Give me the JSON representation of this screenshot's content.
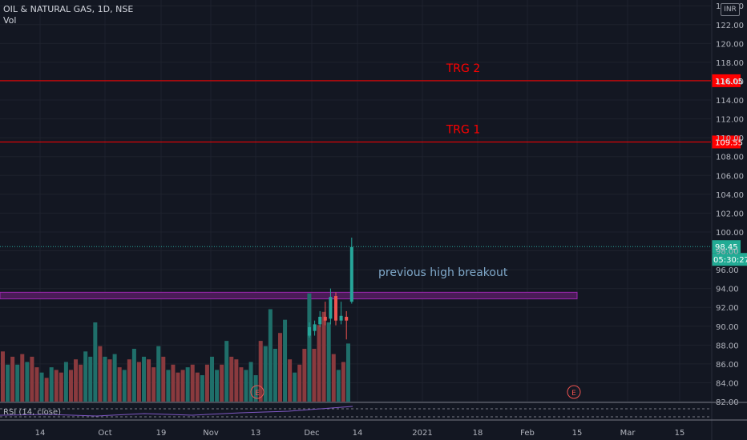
{
  "header": {
    "title": "OIL & NATURAL GAS, 1D, NSE",
    "vol_label": "Vol",
    "currency": "INR"
  },
  "rsi_label": "RSI (14, close)",
  "annotations": {
    "trg2": "TRG 2",
    "trg1": "TRG 1",
    "breakout": "previous high breakout",
    "earnings_marker": "E"
  },
  "colors": {
    "background": "#131722",
    "grid": "#1e222d",
    "up": "#26a69a",
    "down": "#ef5350",
    "vol_up": "#1f6f6a",
    "vol_down": "#8a3a3e",
    "target_line": "#ff0000",
    "zone_border": "#9c27b0",
    "zone_fill": "#4a1b57",
    "text": "#d1d4dc",
    "annotation_blue": "#7fa8c9"
  },
  "chart_data": {
    "type": "candlestick",
    "title": "OIL & NATURAL GAS, 1D, NSE",
    "ylim": [
      81,
      125
    ],
    "y_ticks": [
      "82.00",
      "84.00",
      "86.00",
      "88.00",
      "90.00",
      "92.00",
      "94.00",
      "96.00",
      "98.00",
      "100.00",
      "102.00",
      "104.00",
      "106.00",
      "108.00",
      "110.00",
      "112.00",
      "114.00",
      "116.00",
      "118.00",
      "120.00",
      "122.00",
      "124.00"
    ],
    "x_ticks": [
      "14",
      "Oct",
      "19",
      "Nov",
      "13",
      "Dec",
      "14",
      "2021",
      "18",
      "Feb",
      "15",
      "Mar",
      "15"
    ],
    "price_labels": {
      "last": "98.45",
      "countdown": "05:30:27",
      "trg2": "116.05",
      "trg1": "109.55"
    },
    "levels": {
      "trg2": 116.05,
      "trg1": 109.55,
      "last": 98.45
    },
    "zone": {
      "low": 92.9,
      "high": 93.6
    },
    "candles": [
      {
        "o": 89.0,
        "h": 90.4,
        "l": 88.8,
        "c": 89.9
      },
      {
        "o": 89.5,
        "h": 90.6,
        "l": 89.0,
        "c": 90.2
      },
      {
        "o": 90.2,
        "h": 91.6,
        "l": 89.9,
        "c": 91.0
      },
      {
        "o": 91.0,
        "h": 92.6,
        "l": 90.1,
        "c": 90.6
      },
      {
        "o": 90.8,
        "h": 94.0,
        "l": 90.2,
        "c": 93.1
      },
      {
        "o": 93.2,
        "h": 93.6,
        "l": 90.1,
        "c": 90.6
      },
      {
        "o": 90.6,
        "h": 92.6,
        "l": 90.2,
        "c": 91.1
      },
      {
        "o": 91.0,
        "h": 91.6,
        "l": 88.6,
        "c": 90.6
      },
      {
        "o": 92.6,
        "h": 99.4,
        "l": 92.4,
        "c": 98.4
      }
    ],
    "volume": [
      0.38,
      0.28,
      0.34,
      0.28,
      0.36,
      0.3,
      0.34,
      0.26,
      0.22,
      0.18,
      0.26,
      0.24,
      0.22,
      0.3,
      0.24,
      0.32,
      0.28,
      0.38,
      0.34,
      0.6,
      0.42,
      0.34,
      0.32,
      0.36,
      0.26,
      0.24,
      0.32,
      0.4,
      0.3,
      0.34,
      0.32,
      0.26,
      0.42,
      0.34,
      0.24,
      0.28,
      0.22,
      0.24,
      0.26,
      0.28,
      0.22,
      0.2,
      0.28,
      0.34,
      0.24,
      0.28,
      0.46,
      0.34,
      0.32,
      0.26,
      0.24,
      0.3,
      0.2,
      0.46,
      0.42,
      0.7,
      0.4,
      0.52,
      0.62,
      0.32,
      0.22,
      0.28,
      0.4,
      0.82,
      0.4,
      0.58,
      0.68,
      0.6,
      0.36,
      0.24,
      0.3,
      0.44
    ],
    "volume_up": [
      false,
      true,
      false,
      true,
      false,
      true,
      false,
      false,
      true,
      false,
      true,
      false,
      false,
      true,
      false,
      false,
      false,
      true,
      true,
      true,
      false,
      true,
      false,
      true,
      false,
      true,
      false,
      true,
      false,
      true,
      false,
      false,
      true,
      false,
      true,
      false,
      false,
      false,
      true,
      false,
      false,
      true,
      false,
      true,
      true,
      false,
      true,
      false,
      false,
      false,
      true,
      true,
      true,
      false,
      true,
      true,
      true,
      false,
      true,
      false,
      true,
      false,
      false,
      true,
      false,
      false,
      false,
      true,
      false,
      true,
      false,
      true
    ],
    "earnings_markers": [
      "Nov",
      "Feb"
    ]
  }
}
